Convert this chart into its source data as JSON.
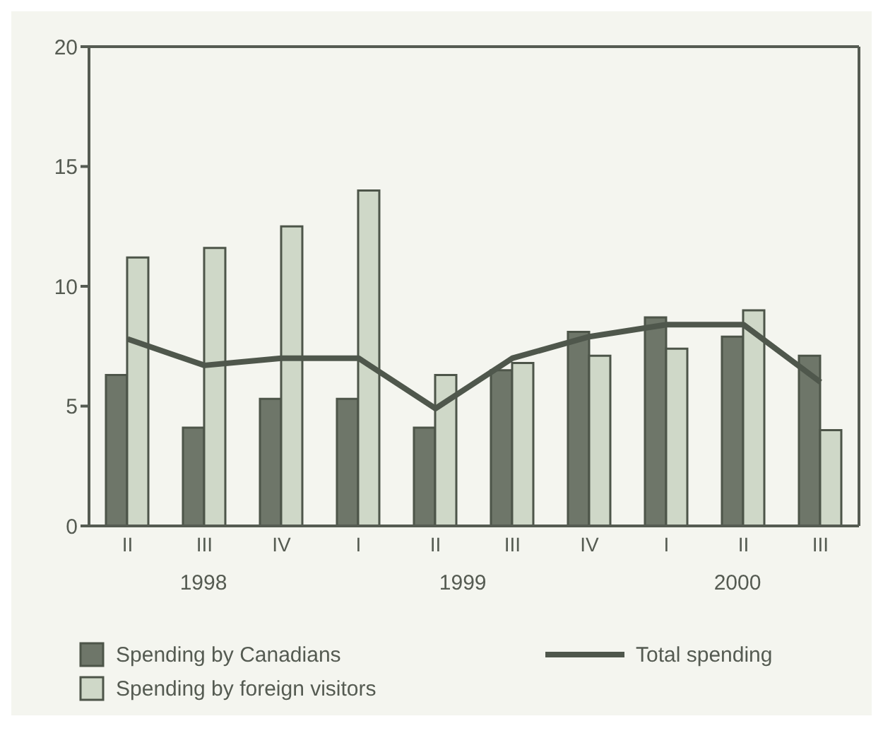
{
  "chart_data": {
    "type": "bar",
    "categories": [
      "II",
      "III",
      "IV",
      "I",
      "II",
      "III",
      "IV",
      "I",
      "II",
      "III"
    ],
    "series": [
      {
        "name": "Spending by Canadians",
        "color": "#6e7669",
        "values": [
          6.3,
          4.1,
          5.3,
          5.3,
          4.1,
          6.5,
          8.1,
          8.7,
          7.9,
          7.1
        ]
      },
      {
        "name": "Spending by foreign visitors",
        "color": "#cfd8c8",
        "values": [
          11.2,
          11.6,
          12.5,
          14.0,
          6.3,
          6.8,
          7.1,
          7.4,
          9.0,
          4.0
        ]
      },
      {
        "name": "Total spending",
        "type": "line",
        "color": "#4f574c",
        "values": [
          7.8,
          6.7,
          7.0,
          7.0,
          4.9,
          7.0,
          7.9,
          8.4,
          8.4,
          6.0
        ]
      }
    ],
    "ylim": [
      0,
      20
    ],
    "yticks": [
      0,
      5,
      10,
      15,
      20
    ],
    "legend": "bottom",
    "marker": "none",
    "line_style": "solid",
    "annotations": [
      "1998",
      "1999",
      "2000"
    ]
  }
}
